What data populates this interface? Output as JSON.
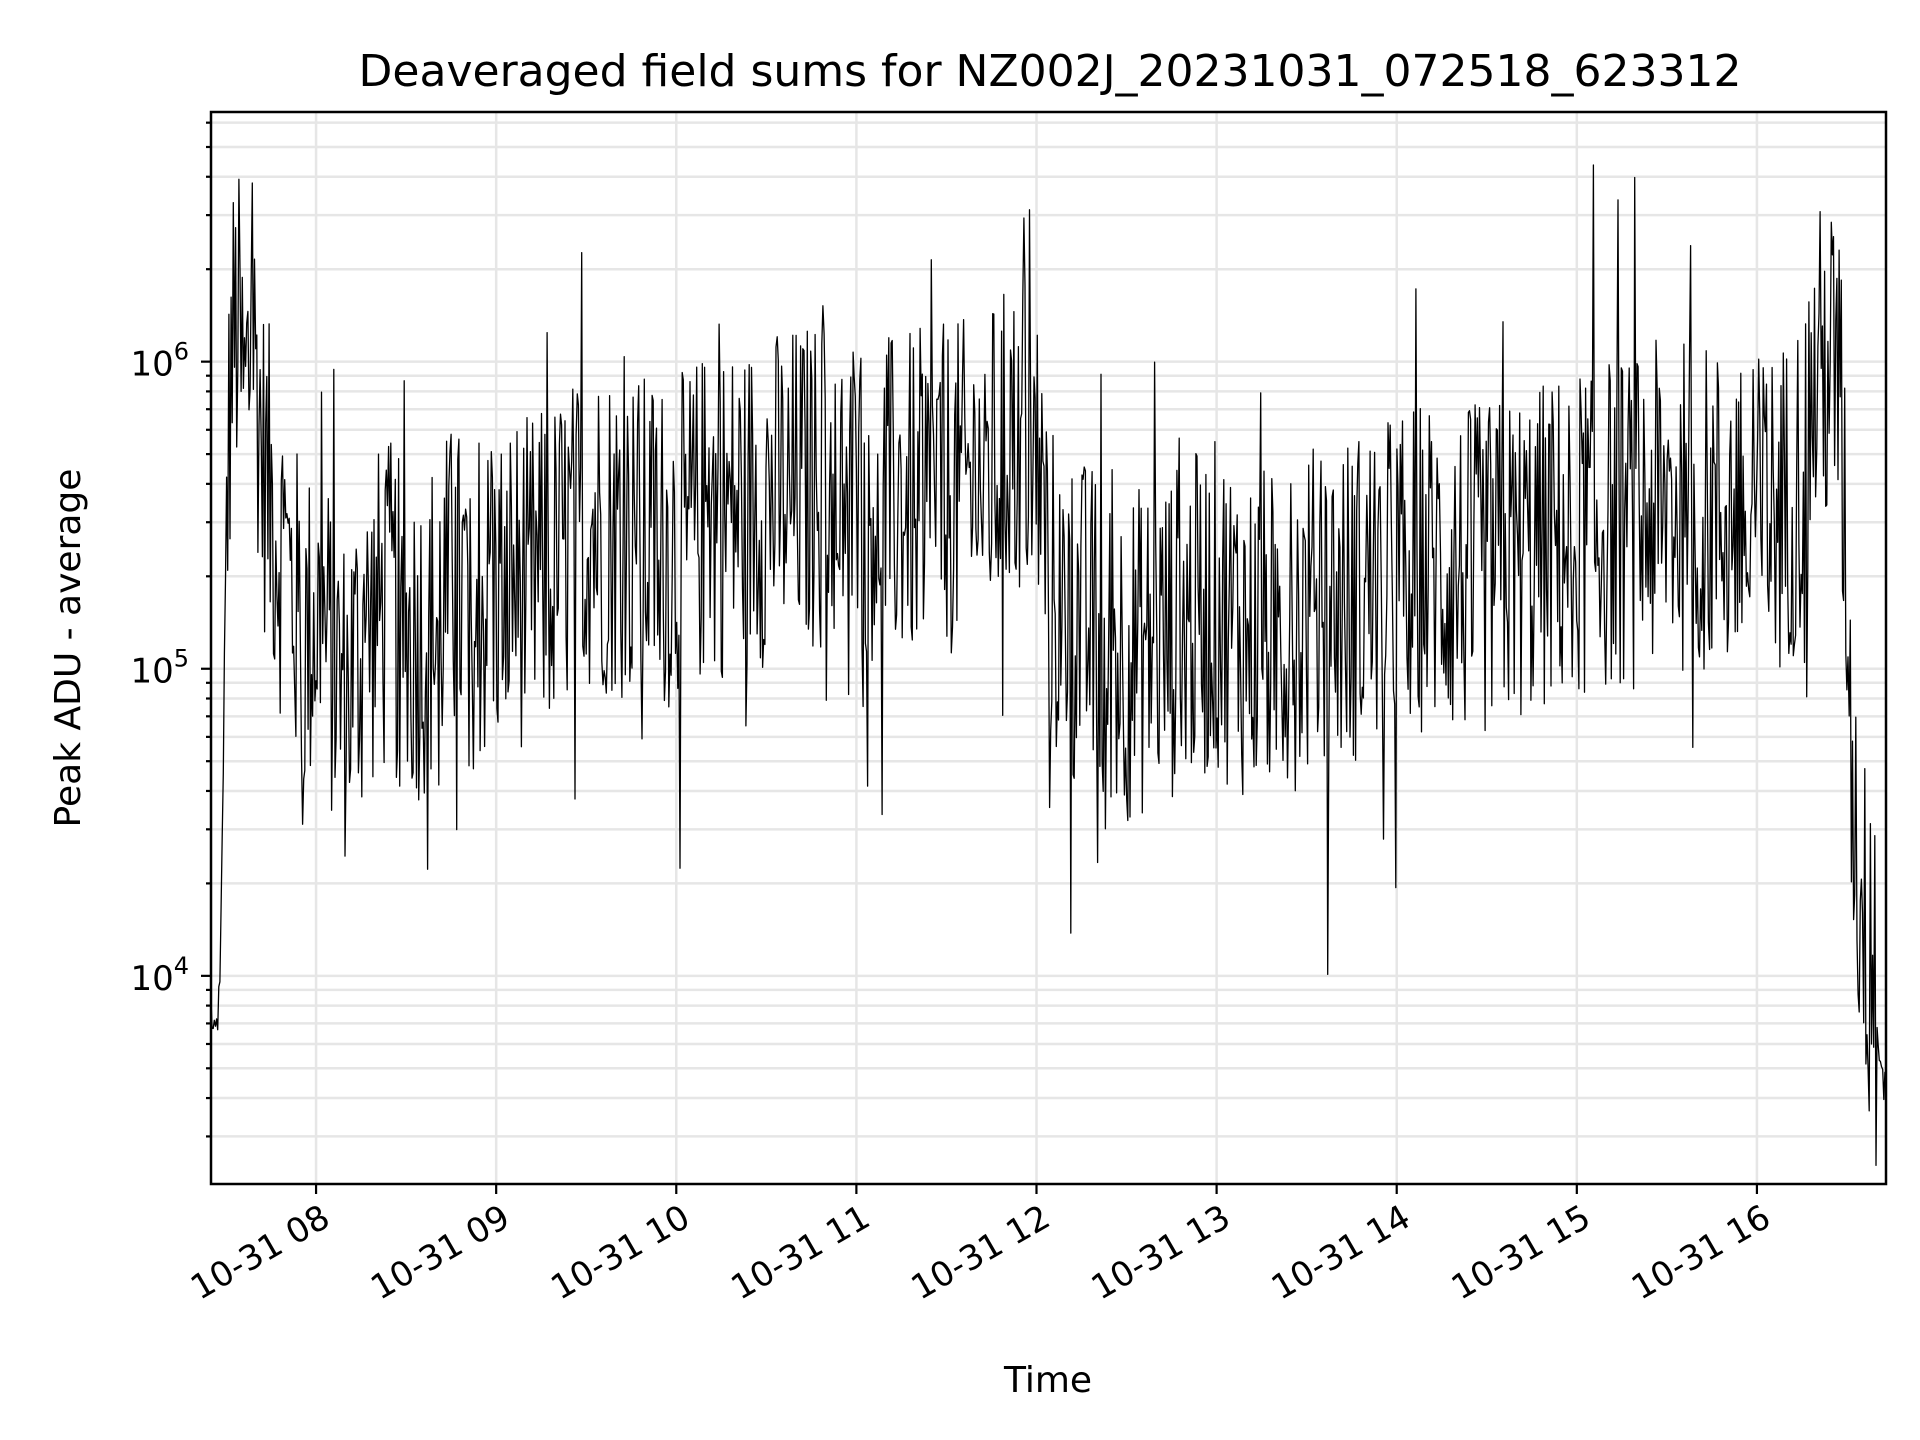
{
  "chart_data": {
    "type": "line",
    "title": "Deaveraged field sums for NZ002J_20231031_072518_623312",
    "xlabel": "Time",
    "ylabel": "Peak ADU - average",
    "x_range": [
      "2023-10-31 07:25",
      "2023-10-31 16:43"
    ],
    "y_scale": "log",
    "ylim": [
      2100,
      6500000
    ],
    "y_ticks": [
      {
        "base": "10",
        "exp": "4",
        "value": 10000
      },
      {
        "base": "10",
        "exp": "5",
        "value": 100000
      },
      {
        "base": "10",
        "exp": "6",
        "value": 1000000
      }
    ],
    "x_ticks": [
      {
        "label": "10-31 08",
        "time": "2023-10-31 08:00"
      },
      {
        "label": "10-31 09",
        "time": "2023-10-31 09:00"
      },
      {
        "label": "10-31 10",
        "time": "2023-10-31 10:00"
      },
      {
        "label": "10-31 11",
        "time": "2023-10-31 11:00"
      },
      {
        "label": "10-31 12",
        "time": "2023-10-31 12:00"
      },
      {
        "label": "10-31 13",
        "time": "2023-10-31 13:00"
      },
      {
        "label": "10-31 14",
        "time": "2023-10-31 14:00"
      },
      {
        "label": "10-31 15",
        "time": "2023-10-31 15:00"
      },
      {
        "label": "10-31 16",
        "time": "2023-10-31 16:00"
      }
    ],
    "grid": "both (major and minor)",
    "legend": "none",
    "series": [
      {
        "color": "#000000",
        "x": [
          "07:25",
          "07:26",
          "07:27",
          "07:28",
          "07:29",
          "07:30",
          "07:32",
          "07:34",
          "07:36",
          "07:38",
          "07:40",
          "07:42",
          "07:45",
          "07:48",
          "07:52",
          "07:56",
          "08:00",
          "08:04",
          "08:08",
          "08:10",
          "08:12",
          "08:16",
          "08:20",
          "08:25",
          "08:30",
          "08:35",
          "08:40",
          "08:45",
          "08:50",
          "08:55",
          "09:00",
          "09:05",
          "09:10",
          "09:15",
          "09:20",
          "09:25",
          "09:30",
          "09:40",
          "09:50",
          "10:00",
          "10:10",
          "10:20",
          "10:30",
          "10:40",
          "10:50",
          "11:00",
          "11:10",
          "11:20",
          "11:30",
          "11:40",
          "11:50",
          "11:55",
          "12:00",
          "12:05",
          "12:10",
          "12:20",
          "12:30",
          "12:40",
          "12:50",
          "13:00",
          "13:10",
          "13:20",
          "13:30",
          "13:40",
          "13:50",
          "14:00",
          "14:10",
          "14:20",
          "14:30",
          "14:40",
          "14:50",
          "15:00",
          "15:10",
          "15:20",
          "15:30",
          "15:40",
          "15:50",
          "16:00",
          "16:10",
          "16:15",
          "16:20",
          "16:25",
          "16:28",
          "16:30",
          "16:32",
          "16:34",
          "16:36",
          "16:38",
          "16:40",
          "16:42",
          "16:43"
        ],
        "y": [
          8000,
          6000,
          7000,
          9000,
          40000,
          300000,
          1100000,
          1300000,
          700000,
          1000000,
          1000000,
          500000,
          350000,
          250000,
          180000,
          120000,
          150000,
          120000,
          90000,
          80000,
          100000,
          120000,
          150000,
          160000,
          120000,
          130000,
          150000,
          180000,
          170000,
          160000,
          180000,
          200000,
          190000,
          200000,
          220000,
          260000,
          300000,
          280000,
          260000,
          250000,
          320000,
          330000,
          360000,
          380000,
          400000,
          380000,
          350000,
          360000,
          380000,
          400000,
          500000,
          600000,
          500000,
          180000,
          150000,
          130000,
          110000,
          120000,
          140000,
          160000,
          130000,
          130000,
          150000,
          160000,
          180000,
          200000,
          220000,
          200000,
          210000,
          230000,
          250000,
          280000,
          300000,
          300000,
          350000,
          330000,
          320000,
          300000,
          350000,
          450000,
          900000,
          1000000,
          600000,
          200000,
          40000,
          20000,
          15000,
          10000,
          7000,
          4500,
          4000
        ]
      }
    ]
  }
}
